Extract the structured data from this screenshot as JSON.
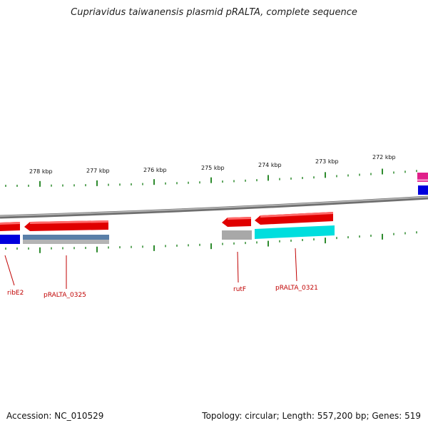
{
  "title": "Cupriavidus taiwanensis plasmid pRALTA, complete sequence",
  "footer": {
    "accession": "Accession: NC_010529",
    "summary": "Topology: circular; Length: 557,200 bp; Genes: 519"
  },
  "colors": {
    "backbone": "#8a8a8a",
    "tick": "#2e8b2e",
    "gene_forward": "#e00000",
    "label_line": "#c00000",
    "cds_blue": "#0000dd",
    "cds_steelblue": "#5a7fa8",
    "cds_gray": "#a8a8a8",
    "cds_cyan": "#00dede",
    "cds_magenta": "#e0208a"
  },
  "scale": {
    "ticks": [
      "278 kbp",
      "277 kbp",
      "276 kbp",
      "275 kbp",
      "274 kbp",
      "273 kbp",
      "272 kbp"
    ]
  },
  "genes": [
    {
      "name": "ribE2"
    },
    {
      "name": "pRALTA_0325"
    },
    {
      "name": "rutF"
    },
    {
      "name": "pRALTA_0321"
    }
  ]
}
